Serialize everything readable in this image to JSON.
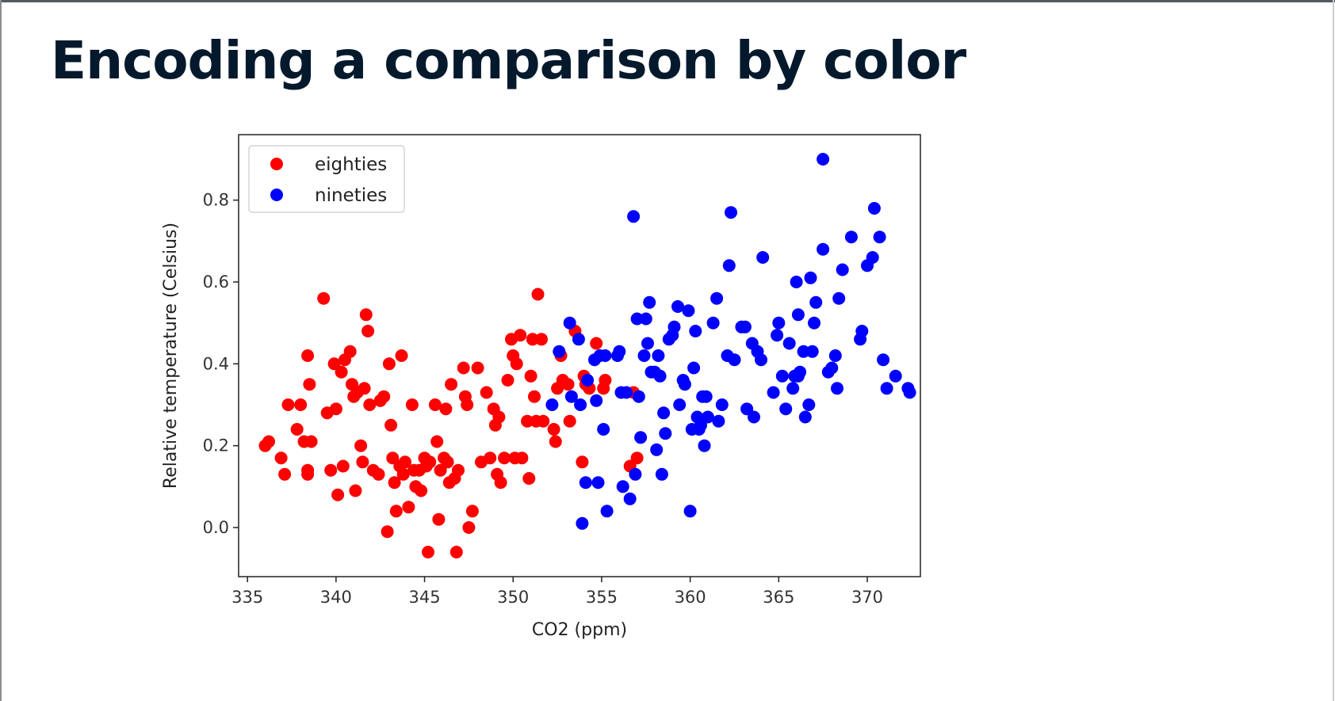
{
  "slide": {
    "title": "Encoding a comparison by color"
  },
  "chart_data": {
    "type": "scatter",
    "title": "",
    "xlabel": "CO2 (ppm)",
    "ylabel": "Relative temperature (Celsius)",
    "xlim": [
      334.5,
      373
    ],
    "ylim": [
      -0.12,
      0.96
    ],
    "xticks": [
      335,
      340,
      345,
      350,
      355,
      360,
      365,
      370
    ],
    "yticks": [
      0.0,
      0.2,
      0.4,
      0.6,
      0.8
    ],
    "grid": false,
    "legend_position": "top-left",
    "series": [
      {
        "name": "eighties",
        "color": "#ff0000",
        "points": [
          [
            336.0,
            0.2
          ],
          [
            336.2,
            0.21
          ],
          [
            336.9,
            0.17
          ],
          [
            337.1,
            0.13
          ],
          [
            337.3,
            0.3
          ],
          [
            337.8,
            0.24
          ],
          [
            338.0,
            0.3
          ],
          [
            338.2,
            0.21
          ],
          [
            338.4,
            0.42
          ],
          [
            338.4,
            0.14
          ],
          [
            338.5,
            0.35
          ],
          [
            338.4,
            0.13
          ],
          [
            338.6,
            0.21
          ],
          [
            339.3,
            0.56
          ],
          [
            339.5,
            0.28
          ],
          [
            339.7,
            0.14
          ],
          [
            339.9,
            0.4
          ],
          [
            340.0,
            0.29
          ],
          [
            340.1,
            0.08
          ],
          [
            340.3,
            0.38
          ],
          [
            340.4,
            0.15
          ],
          [
            340.5,
            0.41
          ],
          [
            340.8,
            0.43
          ],
          [
            340.9,
            0.35
          ],
          [
            341.0,
            0.32
          ],
          [
            341.1,
            0.09
          ],
          [
            341.2,
            0.33
          ],
          [
            341.4,
            0.2
          ],
          [
            341.5,
            0.16
          ],
          [
            341.6,
            0.34
          ],
          [
            341.7,
            0.52
          ],
          [
            341.8,
            0.48
          ],
          [
            341.9,
            0.3
          ],
          [
            342.1,
            0.14
          ],
          [
            342.4,
            0.13
          ],
          [
            342.5,
            0.31
          ],
          [
            342.7,
            0.32
          ],
          [
            342.9,
            -0.01
          ],
          [
            343.0,
            0.4
          ],
          [
            343.1,
            0.25
          ],
          [
            343.2,
            0.17
          ],
          [
            343.3,
            0.11
          ],
          [
            343.4,
            0.04
          ],
          [
            343.6,
            0.15
          ],
          [
            343.7,
            0.42
          ],
          [
            343.8,
            0.13
          ],
          [
            343.9,
            0.16
          ],
          [
            344.1,
            0.05
          ],
          [
            344.3,
            0.3
          ],
          [
            344.4,
            0.14
          ],
          [
            344.5,
            0.1
          ],
          [
            344.7,
            0.14
          ],
          [
            344.8,
            0.09
          ],
          [
            345.0,
            0.17
          ],
          [
            345.1,
            0.15
          ],
          [
            345.2,
            -0.06
          ],
          [
            345.3,
            0.16
          ],
          [
            345.6,
            0.3
          ],
          [
            345.7,
            0.21
          ],
          [
            345.8,
            0.02
          ],
          [
            345.9,
            0.14
          ],
          [
            346.1,
            0.17
          ],
          [
            346.2,
            0.29
          ],
          [
            346.3,
            0.16
          ],
          [
            346.4,
            0.11
          ],
          [
            346.5,
            0.35
          ],
          [
            346.7,
            0.12
          ],
          [
            346.8,
            -0.06
          ],
          [
            346.9,
            0.14
          ],
          [
            347.2,
            0.39
          ],
          [
            347.3,
            0.32
          ],
          [
            347.4,
            0.3
          ],
          [
            347.5,
            0.0
          ],
          [
            347.7,
            0.04
          ],
          [
            348.0,
            0.39
          ],
          [
            348.2,
            0.16
          ],
          [
            348.5,
            0.33
          ],
          [
            348.7,
            0.17
          ],
          [
            348.9,
            0.29
          ],
          [
            349.0,
            0.25
          ],
          [
            349.1,
            0.13
          ],
          [
            349.2,
            0.27
          ],
          [
            349.3,
            0.11
          ],
          [
            349.5,
            0.17
          ],
          [
            349.7,
            0.36
          ],
          [
            349.9,
            0.46
          ],
          [
            350.0,
            0.42
          ],
          [
            350.1,
            0.17
          ],
          [
            350.2,
            0.4
          ],
          [
            350.4,
            0.47
          ],
          [
            350.5,
            0.17
          ],
          [
            350.8,
            0.26
          ],
          [
            350.9,
            0.12
          ],
          [
            351.0,
            0.37
          ],
          [
            351.1,
            0.46
          ],
          [
            351.2,
            0.32
          ],
          [
            351.3,
            0.26
          ],
          [
            351.4,
            0.57
          ],
          [
            351.6,
            0.46
          ],
          [
            351.7,
            0.26
          ],
          [
            352.3,
            0.24
          ],
          [
            352.4,
            0.21
          ],
          [
            352.5,
            0.34
          ],
          [
            352.7,
            0.42
          ],
          [
            352.8,
            0.36
          ],
          [
            353.1,
            0.35
          ],
          [
            353.2,
            0.26
          ],
          [
            353.5,
            0.48
          ],
          [
            353.9,
            0.16
          ],
          [
            354.0,
            0.37
          ],
          [
            354.1,
            0.35
          ],
          [
            354.3,
            0.34
          ],
          [
            354.7,
            0.45
          ],
          [
            355.1,
            0.34
          ],
          [
            355.2,
            0.36
          ],
          [
            356.6,
            0.15
          ],
          [
            356.8,
            0.33
          ],
          [
            357.0,
            0.17
          ]
        ]
      },
      {
        "name": "nineties",
        "color": "#0000ff",
        "points": [
          [
            352.2,
            0.3
          ],
          [
            352.6,
            0.43
          ],
          [
            353.2,
            0.5
          ],
          [
            353.3,
            0.32
          ],
          [
            353.7,
            0.46
          ],
          [
            353.8,
            0.3
          ],
          [
            353.9,
            0.01
          ],
          [
            354.1,
            0.11
          ],
          [
            354.2,
            0.36
          ],
          [
            354.6,
            0.41
          ],
          [
            354.7,
            0.31
          ],
          [
            354.8,
            0.11
          ],
          [
            354.9,
            0.42
          ],
          [
            355.1,
            0.24
          ],
          [
            355.2,
            0.42
          ],
          [
            355.3,
            0.04
          ],
          [
            355.9,
            0.42
          ],
          [
            356.0,
            0.43
          ],
          [
            356.1,
            0.33
          ],
          [
            356.2,
            0.1
          ],
          [
            356.4,
            0.33
          ],
          [
            356.6,
            0.07
          ],
          [
            356.8,
            0.76
          ],
          [
            356.9,
            0.13
          ],
          [
            357.0,
            0.51
          ],
          [
            357.1,
            0.32
          ],
          [
            357.2,
            0.22
          ],
          [
            357.4,
            0.42
          ],
          [
            357.5,
            0.51
          ],
          [
            357.6,
            0.45
          ],
          [
            357.7,
            0.55
          ],
          [
            357.8,
            0.38
          ],
          [
            358.0,
            0.38
          ],
          [
            358.1,
            0.19
          ],
          [
            358.2,
            0.42
          ],
          [
            358.3,
            0.37
          ],
          [
            358.4,
            0.13
          ],
          [
            358.5,
            0.28
          ],
          [
            358.6,
            0.23
          ],
          [
            358.8,
            0.46
          ],
          [
            359.0,
            0.47
          ],
          [
            359.1,
            0.49
          ],
          [
            359.3,
            0.54
          ],
          [
            359.4,
            0.3
          ],
          [
            359.6,
            0.36
          ],
          [
            359.7,
            0.35
          ],
          [
            359.9,
            0.53
          ],
          [
            360.0,
            0.04
          ],
          [
            360.1,
            0.24
          ],
          [
            360.2,
            0.39
          ],
          [
            360.3,
            0.48
          ],
          [
            360.4,
            0.27
          ],
          [
            360.5,
            0.24
          ],
          [
            360.6,
            0.25
          ],
          [
            360.7,
            0.32
          ],
          [
            360.8,
            0.2
          ],
          [
            360.9,
            0.32
          ],
          [
            361.0,
            0.27
          ],
          [
            361.3,
            0.5
          ],
          [
            361.5,
            0.56
          ],
          [
            361.6,
            0.26
          ],
          [
            361.8,
            0.3
          ],
          [
            362.1,
            0.42
          ],
          [
            362.2,
            0.64
          ],
          [
            362.3,
            0.77
          ],
          [
            362.5,
            0.41
          ],
          [
            362.9,
            0.49
          ],
          [
            363.1,
            0.49
          ],
          [
            363.2,
            0.29
          ],
          [
            363.5,
            0.45
          ],
          [
            363.6,
            0.27
          ],
          [
            363.8,
            0.43
          ],
          [
            364.0,
            0.41
          ],
          [
            364.1,
            0.66
          ],
          [
            364.7,
            0.33
          ],
          [
            364.9,
            0.47
          ],
          [
            365.0,
            0.5
          ],
          [
            365.2,
            0.37
          ],
          [
            365.4,
            0.29
          ],
          [
            365.6,
            0.45
          ],
          [
            365.8,
            0.34
          ],
          [
            365.9,
            0.37
          ],
          [
            366.0,
            0.6
          ],
          [
            366.1,
            0.37
          ],
          [
            366.1,
            0.52
          ],
          [
            366.2,
            0.38
          ],
          [
            366.4,
            0.43
          ],
          [
            366.5,
            0.27
          ],
          [
            366.7,
            0.3
          ],
          [
            366.8,
            0.61
          ],
          [
            366.9,
            0.43
          ],
          [
            367.0,
            0.5
          ],
          [
            367.1,
            0.55
          ],
          [
            367.5,
            0.9
          ],
          [
            367.5,
            0.68
          ],
          [
            367.8,
            0.38
          ],
          [
            368.0,
            0.39
          ],
          [
            368.2,
            0.42
          ],
          [
            368.3,
            0.34
          ],
          [
            368.4,
            0.56
          ],
          [
            368.6,
            0.63
          ],
          [
            369.1,
            0.71
          ],
          [
            369.6,
            0.46
          ],
          [
            369.7,
            0.48
          ],
          [
            370.0,
            0.64
          ],
          [
            370.3,
            0.66
          ],
          [
            370.4,
            0.78
          ],
          [
            370.7,
            0.71
          ],
          [
            370.9,
            0.41
          ],
          [
            371.1,
            0.34
          ],
          [
            371.6,
            0.37
          ],
          [
            372.3,
            0.34
          ],
          [
            372.4,
            0.33
          ]
        ]
      }
    ]
  }
}
